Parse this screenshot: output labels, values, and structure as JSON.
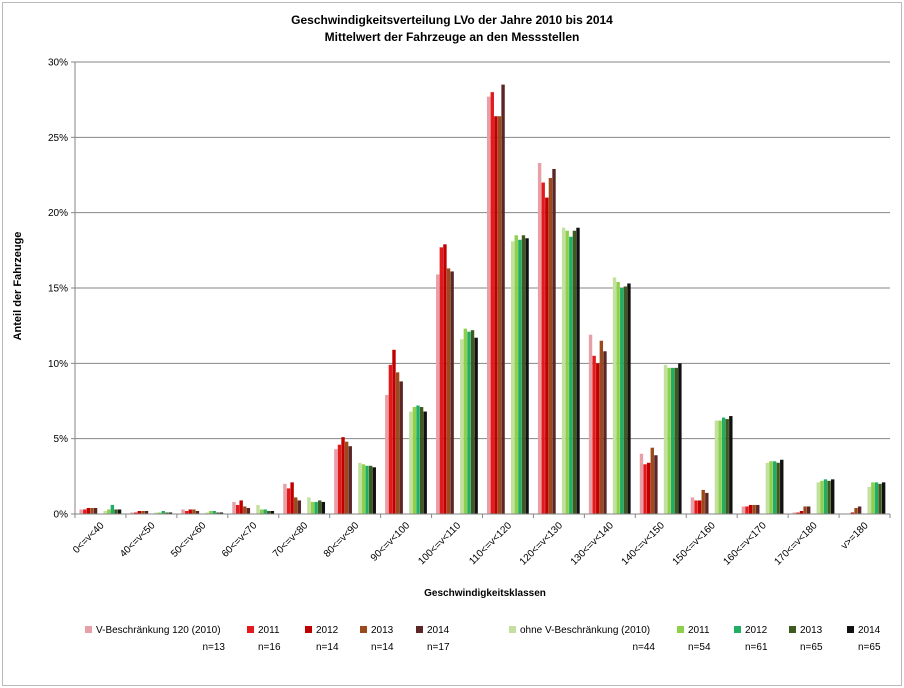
{
  "chart_data": {
    "type": "bar",
    "title": "Geschwindigkeitsverteilung LVo der Jahre 2010 bis 2014",
    "subtitle": "Mittelwert der Fahrzeuge an den Messstellen",
    "xlabel": "Geschwindigkeitsklassen",
    "ylabel": "Anteil der Fahrzeuge",
    "ylim": [
      0,
      30
    ],
    "yticks": [
      "0%",
      "5%",
      "10%",
      "15%",
      "20%",
      "25%",
      "30%"
    ],
    "grid": true,
    "legend_position": "bottom",
    "categories": [
      "0<=v<40",
      "40<=v<50",
      "50<=v<60",
      "60<=v<70",
      "70<=v<80",
      "80<=v<90",
      "90<=v<100",
      "100<=v<110",
      "110<=v<120",
      "120<=v<130",
      "130<=v<140",
      "140<=v<150",
      "150<=v<160",
      "160<=v<170",
      "170<=v<180",
      "v>=180"
    ],
    "series": [
      {
        "name": "V-Beschränkung 120 (2010)",
        "n": "n=13",
        "color": "#e8a0a8",
        "values": [
          0.3,
          0.1,
          0.3,
          0.8,
          2.0,
          4.3,
          7.9,
          15.9,
          27.7,
          23.3,
          11.9,
          4.0,
          1.1,
          0.5,
          0.1,
          0.0
        ]
      },
      {
        "name": "2011",
        "n": "n=16",
        "color": "#e31a1c",
        "values": [
          0.3,
          0.1,
          0.2,
          0.6,
          1.7,
          4.6,
          9.9,
          17.7,
          28.0,
          22.0,
          10.5,
          3.3,
          0.9,
          0.5,
          0.1,
          0.0
        ]
      },
      {
        "name": "2012",
        "n": "n=14",
        "color": "#c00000",
        "values": [
          0.4,
          0.2,
          0.3,
          0.9,
          2.1,
          5.1,
          10.9,
          17.9,
          26.4,
          21.0,
          10.0,
          3.4,
          0.9,
          0.6,
          0.2,
          0.1
        ]
      },
      {
        "name": "2013",
        "n": "n=14",
        "color": "#9c4a1c",
        "values": [
          0.4,
          0.2,
          0.3,
          0.5,
          1.1,
          4.8,
          9.4,
          16.3,
          26.4,
          22.3,
          11.5,
          4.4,
          1.6,
          0.6,
          0.5,
          0.4
        ]
      },
      {
        "name": "2014",
        "n": "n=17",
        "color": "#5c2626",
        "values": [
          0.4,
          0.2,
          0.2,
          0.4,
          0.9,
          4.5,
          8.8,
          16.1,
          28.5,
          22.9,
          10.8,
          3.9,
          1.4,
          0.6,
          0.5,
          0.5
        ]
      },
      {
        "name": "ohne V-Beschränkung (2010)",
        "n": "n=44",
        "color": "#c3e0a0",
        "values": [
          0.2,
          0.1,
          0.1,
          0.6,
          1.1,
          3.4,
          6.8,
          11.6,
          18.1,
          19.0,
          15.7,
          9.9,
          6.2,
          3.4,
          2.1,
          1.8
        ]
      },
      {
        "name": "2011",
        "n": "n=54",
        "color": "#8ed04b",
        "values": [
          0.3,
          0.1,
          0.2,
          0.3,
          0.8,
          3.3,
          7.1,
          12.3,
          18.5,
          18.8,
          15.4,
          9.7,
          6.2,
          3.5,
          2.2,
          2.1
        ]
      },
      {
        "name": "2012",
        "n": "n=61",
        "color": "#1fae63",
        "values": [
          0.6,
          0.2,
          0.2,
          0.3,
          0.8,
          3.2,
          7.2,
          12.1,
          18.2,
          18.4,
          15.0,
          9.7,
          6.4,
          3.5,
          2.3,
          2.1
        ]
      },
      {
        "name": "2013",
        "n": "n=65",
        "color": "#3e5a1e",
        "values": [
          0.3,
          0.1,
          0.1,
          0.2,
          0.9,
          3.2,
          7.1,
          12.2,
          18.5,
          18.8,
          15.1,
          9.7,
          6.3,
          3.4,
          2.2,
          2.0
        ]
      },
      {
        "name": "2014",
        "n": "n=65",
        "color": "#111111",
        "values": [
          0.3,
          0.1,
          0.1,
          0.2,
          0.8,
          3.1,
          6.8,
          11.7,
          18.3,
          19.0,
          15.3,
          10.0,
          6.5,
          3.6,
          2.3,
          2.1
        ]
      }
    ]
  }
}
